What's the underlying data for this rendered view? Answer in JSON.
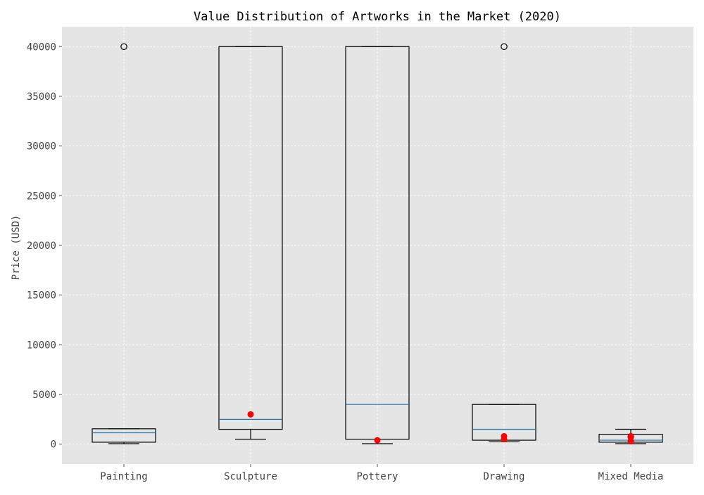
{
  "chart_data": {
    "type": "box",
    "title": "Value Distribution of Artworks in the Market (2020)",
    "xlabel": "",
    "ylabel": "Price (USD)",
    "ylim": [
      -2000,
      42000
    ],
    "yticks": [
      0,
      5000,
      10000,
      15000,
      20000,
      25000,
      30000,
      35000,
      40000
    ],
    "grid": true,
    "categories": [
      "Painting",
      "Sculpture",
      "Pottery",
      "Drawing",
      "Mixed Media"
    ],
    "boxes": [
      {
        "category": "Painting",
        "whisker_low": 50,
        "q1": 200,
        "median": 1150,
        "q3": 1550,
        "whisker_high": 1550,
        "outliers": [
          40000
        ],
        "points": []
      },
      {
        "category": "Sculpture",
        "whisker_low": 500,
        "q1": 1500,
        "median": 2500,
        "q3": 40000,
        "whisker_high": 40000,
        "outliers": [],
        "points": [
          3000
        ]
      },
      {
        "category": "Pottery",
        "whisker_low": 50,
        "q1": 500,
        "median": 4000,
        "q3": 40000,
        "whisker_high": 40000,
        "outliers": [],
        "points": [
          400
        ]
      },
      {
        "category": "Drawing",
        "whisker_low": 250,
        "q1": 400,
        "median": 1500,
        "q3": 4000,
        "whisker_high": 4000,
        "outliers": [
          40000
        ],
        "points": [
          500,
          800
        ]
      },
      {
        "category": "Mixed Media",
        "whisker_low": 50,
        "q1": 200,
        "median": 400,
        "q3": 1000,
        "whisker_high": 1500,
        "outliers": [],
        "points": [
          300,
          700,
          800
        ]
      }
    ],
    "colors": {
      "plot_background": "#e5e5e5",
      "grid": "#ffffff",
      "box": "#000000",
      "median": "#1f77b4",
      "points": "#ff0000",
      "outlier_edge": "#000000"
    }
  }
}
